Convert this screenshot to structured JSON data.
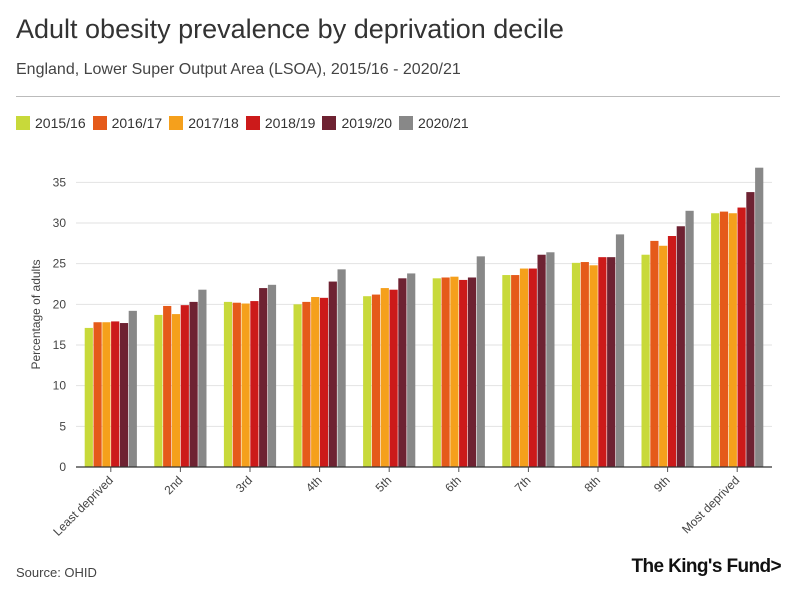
{
  "title": "Adult obesity prevalence by deprivation decile",
  "subtitle": "England, Lower Super Output Area (LSOA), 2015/16 - 2020/21",
  "source": "Source: OHID",
  "brand": "The King's Fund>",
  "colors": {
    "2015/16": "#c8d93a",
    "2016/17": "#e55a1a",
    "2017/18": "#f5a01c",
    "2018/19": "#cc1a1a",
    "2019/20": "#6e2232",
    "2020/21": "#888888",
    "grid": "#e2e2e2",
    "axis": "#333333"
  },
  "chart_data": {
    "type": "bar",
    "title": "Adult obesity prevalence by deprivation decile",
    "xlabel": "",
    "ylabel": "Percentage of adults",
    "ylim": [
      0,
      37.5
    ],
    "yticks": [
      0,
      5,
      10,
      15,
      20,
      25,
      30,
      35
    ],
    "grid": true,
    "legend_position": "top-left",
    "categories": [
      "Least deprived",
      "2nd",
      "3rd",
      "4th",
      "5th",
      "6th",
      "7th",
      "8th",
      "9th",
      "Most deprived"
    ],
    "series": [
      {
        "name": "2015/16",
        "values": [
          17.1,
          18.7,
          20.3,
          20.0,
          21.0,
          23.2,
          23.6,
          25.1,
          26.1,
          31.2
        ]
      },
      {
        "name": "2016/17",
        "values": [
          17.8,
          19.8,
          20.2,
          20.3,
          21.2,
          23.3,
          23.6,
          25.2,
          27.8,
          31.4
        ]
      },
      {
        "name": "2017/18",
        "values": [
          17.8,
          18.8,
          20.1,
          20.9,
          22.0,
          23.4,
          24.4,
          24.8,
          27.2,
          31.2
        ]
      },
      {
        "name": "2018/19",
        "values": [
          17.9,
          19.9,
          20.4,
          20.8,
          21.8,
          23.0,
          24.4,
          25.8,
          28.4,
          31.9
        ]
      },
      {
        "name": "2019/20",
        "values": [
          17.7,
          20.3,
          22.0,
          22.8,
          23.2,
          23.3,
          26.1,
          25.8,
          29.6,
          33.8
        ]
      },
      {
        "name": "2020/21",
        "values": [
          19.2,
          21.8,
          22.4,
          24.3,
          23.8,
          25.9,
          26.4,
          28.6,
          31.5,
          36.8
        ]
      }
    ]
  }
}
